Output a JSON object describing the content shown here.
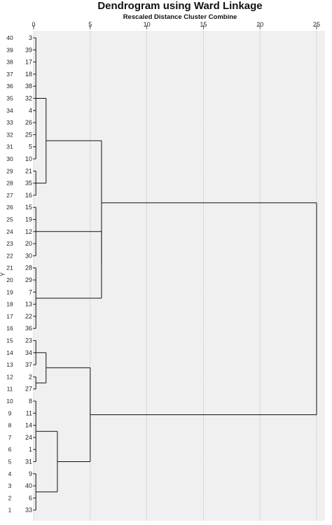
{
  "chart_data": {
    "type": "dendrogram",
    "title": "Dendrogram using Ward Linkage",
    "subtitle": "Rescaled Distance Cluster Combine",
    "ylabel": "Y",
    "xlim": [
      0,
      25
    ],
    "x_ticks": [
      0,
      5,
      10,
      15,
      20,
      25
    ],
    "grid": "vertical",
    "leaf_order": [
      "3",
      "39",
      "17",
      "18",
      "38",
      "32",
      "4",
      "26",
      "25",
      "5",
      "10",
      "21",
      "35",
      "16",
      "15",
      "19",
      "12",
      "20",
      "30",
      "28",
      "29",
      "7",
      "13",
      "22",
      "36",
      "23",
      "34",
      "37",
      "2",
      "27",
      "8",
      "11",
      "14",
      "24",
      "1",
      "31",
      "9",
      "40",
      "6",
      "33"
    ],
    "row_positions": [
      40,
      39,
      38,
      37,
      36,
      35,
      34,
      33,
      32,
      31,
      30,
      29,
      28,
      27,
      26,
      25,
      24,
      23,
      22,
      21,
      20,
      19,
      18,
      17,
      16,
      15,
      14,
      13,
      12,
      11,
      10,
      9,
      8,
      7,
      6,
      5,
      4,
      3,
      2,
      1
    ],
    "merges": [
      {
        "id": "A",
        "children": [
          "L0",
          "L1",
          "L2",
          "L3",
          "L4",
          "L5",
          "L6",
          "L7",
          "L8",
          "L9",
          "L10"
        ],
        "height": 0.2
      },
      {
        "id": "B",
        "children": [
          "L11",
          "L12",
          "L13"
        ],
        "height": 0.2
      },
      {
        "id": "C",
        "children": [
          "A",
          "B"
        ],
        "height": 1.1
      },
      {
        "id": "D",
        "children": [
          "L14",
          "L15",
          "L16",
          "L17",
          "L18"
        ],
        "height": 0.2
      },
      {
        "id": "E",
        "children": [
          "L19",
          "L20",
          "L21",
          "L22",
          "L23",
          "L24"
        ],
        "height": 0.2
      },
      {
        "id": "F",
        "children": [
          "D",
          "E"
        ],
        "height": 6.0
      },
      {
        "id": "G",
        "children": [
          "C",
          "F"
        ],
        "height": 6.0
      },
      {
        "id": "H",
        "children": [
          "L25",
          "L26",
          "L27"
        ],
        "height": 0.2
      },
      {
        "id": "I",
        "children": [
          "L28",
          "L29"
        ],
        "height": 0.2
      },
      {
        "id": "J",
        "children": [
          "H",
          "I"
        ],
        "height": 1.1
      },
      {
        "id": "K",
        "children": [
          "L30",
          "L31",
          "L32",
          "L33",
          "L34",
          "L35"
        ],
        "height": 0.2
      },
      {
        "id": "L",
        "children": [
          "L36",
          "L37",
          "L38",
          "L39"
        ],
        "height": 0.2
      },
      {
        "id": "M",
        "children": [
          "K",
          "L"
        ],
        "height": 2.1
      },
      {
        "id": "N",
        "children": [
          "J",
          "M"
        ],
        "height": 5.0
      },
      {
        "id": "O",
        "children": [
          "G",
          "N"
        ],
        "height": 25.0
      }
    ]
  }
}
